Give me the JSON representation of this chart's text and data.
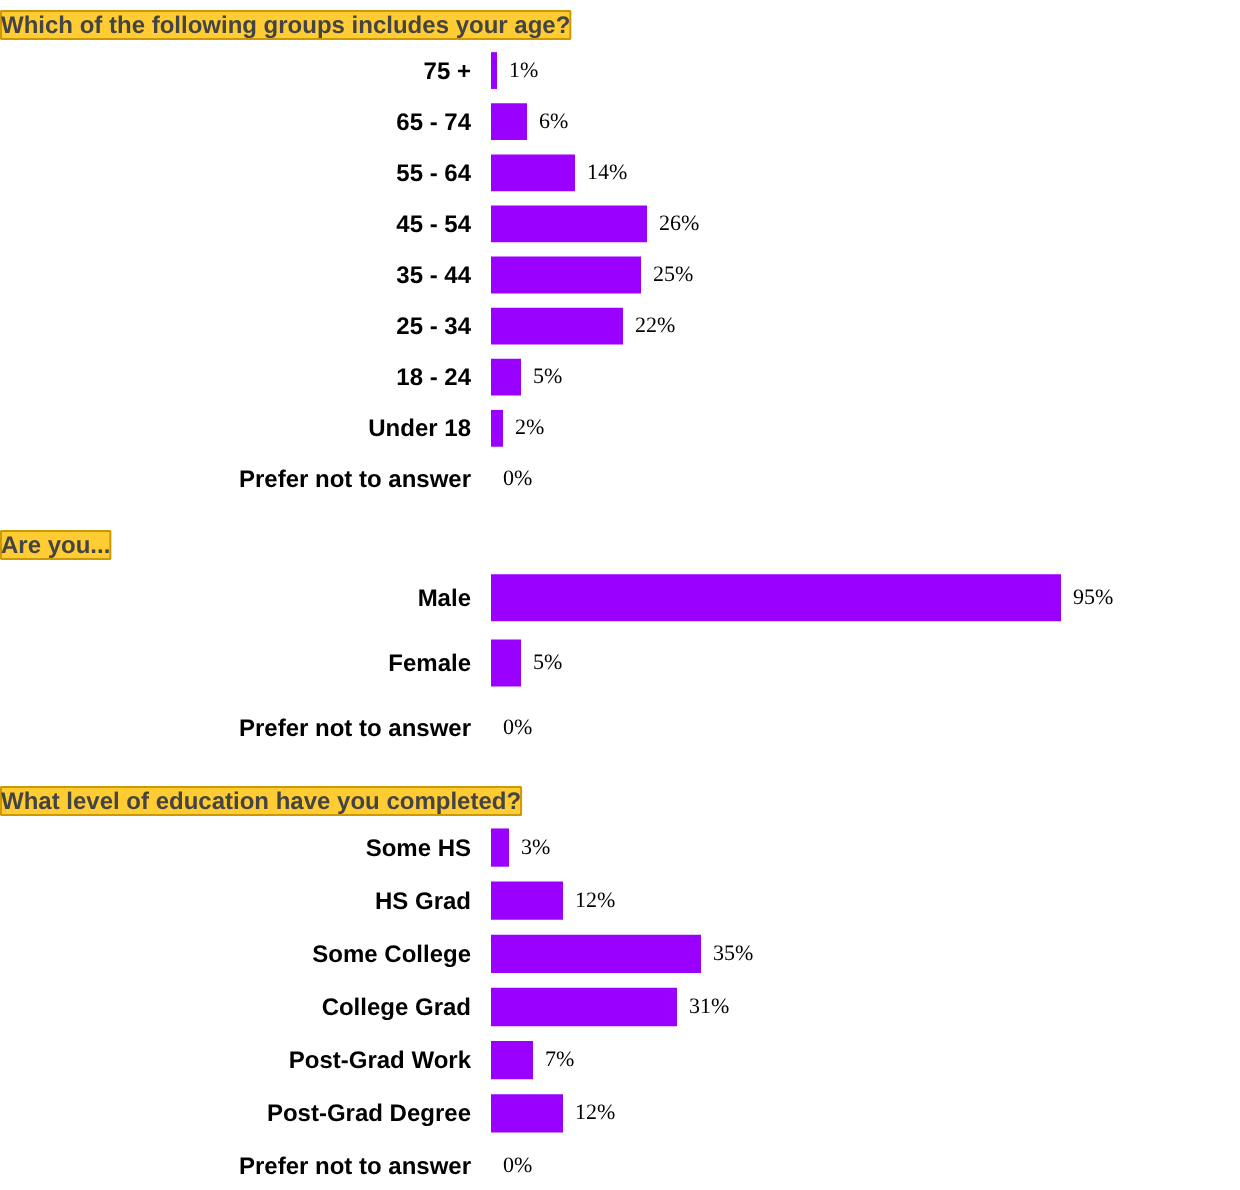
{
  "chart_data": [
    {
      "type": "bar",
      "orientation": "horizontal",
      "title": "Which of the following groups includes your age?",
      "categories": [
        "75 +",
        "65 - 74",
        "55 - 64",
        "45 - 54",
        "35 - 44",
        "25 - 34",
        "18 - 24",
        "Under 18",
        "Prefer not to answer"
      ],
      "values": [
        1,
        6,
        14,
        26,
        25,
        22,
        5,
        2,
        0
      ],
      "value_labels": [
        "1%",
        "6%",
        "14%",
        "26%",
        "25%",
        "22%",
        "5%",
        "2%",
        "0%"
      ],
      "color": "#9900ff"
    },
    {
      "type": "bar",
      "orientation": "horizontal",
      "title": "Are you...",
      "categories": [
        "Male",
        "Female",
        "Prefer not to answer"
      ],
      "values": [
        95,
        5,
        0
      ],
      "value_labels": [
        "95%",
        "5%",
        "0%"
      ],
      "color": "#9900ff"
    },
    {
      "type": "bar",
      "orientation": "horizontal",
      "title": "What level of education have you completed?",
      "categories": [
        "Some HS",
        "HS Grad",
        "Some College",
        "College Grad",
        "Post-Grad Work",
        "Post-Grad Degree",
        "Prefer not to answer"
      ],
      "values": [
        3,
        12,
        35,
        31,
        7,
        12,
        0
      ],
      "value_labels": [
        "3%",
        "12%",
        "35%",
        "31%",
        "7%",
        "12%",
        "0%"
      ],
      "color": "#9900ff"
    }
  ]
}
